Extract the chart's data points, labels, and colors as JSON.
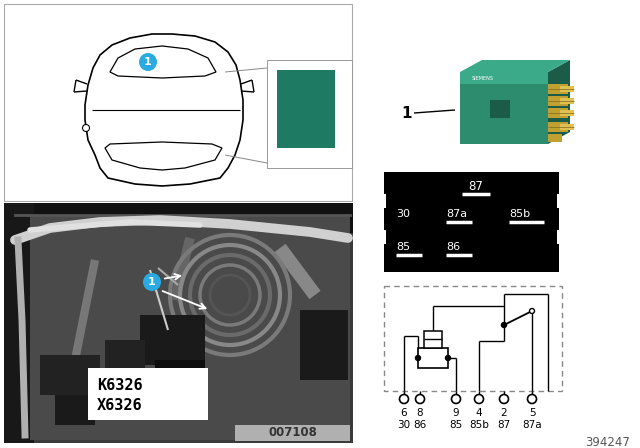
{
  "bg_color": "#ffffff",
  "teal_color": "#1e7a62",
  "label_1_color": "#29abe2",
  "part_number": "394247",
  "diagram_number": "007108",
  "terminal_labels_row1": [
    "6",
    "8",
    "9",
    "4",
    "2",
    "5"
  ],
  "terminal_labels_row2": [
    "30",
    "86",
    "85",
    "85b",
    "87",
    "87a"
  ],
  "relay_pin_labels": [
    "87",
    "30",
    "87a",
    "85b",
    "85",
    "86"
  ],
  "relay_green": "#2d8c6e",
  "relay_green_dark": "#1a5c48",
  "relay_green_top": "#3aaa88",
  "relay_pin_gold": "#c8a840",
  "relay_pin_dark": "#8a7020"
}
